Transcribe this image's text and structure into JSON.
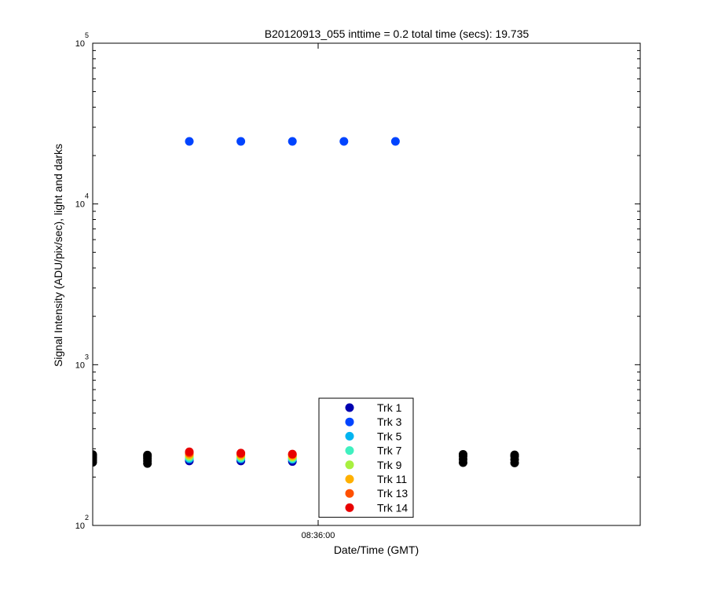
{
  "chart_data": {
    "type": "scatter",
    "title": "B20120913_055 inttime = 0.2 total time (secs): 19.735",
    "xlabel": "Date/Time (GMT)",
    "ylabel": "Signal Intensity (ADU/pix/sec), light and darks",
    "yscale": "log",
    "ylim": [
      100,
      100000
    ],
    "xlim": [
      "08:35:53",
      "08:36:10"
    ],
    "x_ticks": [
      {
        "value": "08:36:00",
        "label": "08:36:00"
      }
    ],
    "y_ticks": [
      {
        "base": "10",
        "exp": "2",
        "value": 100
      },
      {
        "base": "10",
        "exp": "3",
        "value": 1000
      },
      {
        "base": "10",
        "exp": "4",
        "value": 10000
      },
      {
        "base": "10",
        "exp": "5",
        "value": 100000
      }
    ],
    "grid": false,
    "legend_position": "bottom-center",
    "series": [
      {
        "name": "Trk 1",
        "color": "#0000b0",
        "x": [
          "08:35:56",
          "08:35:57.6",
          "08:35:59.2"
        ],
        "y": [
          252,
          252,
          250
        ]
      },
      {
        "name": "Trk 3",
        "color": "#0044ff",
        "x": [
          "08:35:56",
          "08:35:57.6",
          "08:35:59.2",
          "08:36:00.8",
          "08:36:02.4"
        ],
        "y": [
          24500,
          24500,
          24500,
          24500,
          24500
        ]
      },
      {
        "name": "Trk 5",
        "color": "#00b4f0",
        "x": [
          "08:35:56",
          "08:35:57.6",
          "08:35:59.2"
        ],
        "y": [
          260,
          260,
          258
        ]
      },
      {
        "name": "Trk 7",
        "color": "#40f0c0",
        "x": [
          "08:35:56",
          "08:35:57.6",
          "08:35:59.2"
        ],
        "y": [
          265,
          264,
          262
        ]
      },
      {
        "name": "Trk 9",
        "color": "#a8f040",
        "x": [
          "08:35:56",
          "08:35:57.6",
          "08:35:59.2"
        ],
        "y": [
          270,
          269,
          266
        ]
      },
      {
        "name": "Trk 11",
        "color": "#ffb000",
        "x": [
          "08:35:56",
          "08:35:57.6",
          "08:35:59.2"
        ],
        "y": [
          276,
          274,
          271
        ]
      },
      {
        "name": "Trk 13",
        "color": "#ff5000",
        "x": [
          "08:35:56",
          "08:35:57.6",
          "08:35:59.2"
        ],
        "y": [
          282,
          279,
          276
        ]
      },
      {
        "name": "Trk 14",
        "color": "#e80000",
        "x": [
          "08:35:56",
          "08:35:57.6",
          "08:35:59.2"
        ],
        "y": [
          287,
          282,
          278
        ]
      }
    ],
    "dark_points": {
      "color": "#000000",
      "x": [
        "08:35:53",
        "08:35:53",
        "08:35:53",
        "08:35:53",
        "08:35:53",
        "08:35:54.7",
        "08:35:54.7",
        "08:35:54.7",
        "08:35:54.7",
        "08:35:54.7",
        "08:36:04.5",
        "08:36:04.5",
        "08:36:04.5",
        "08:36:04.5",
        "08:36:06.1",
        "08:36:06.1",
        "08:36:06.1",
        "08:36:06.1"
      ],
      "y": [
        276,
        270,
        263,
        255,
        247,
        274,
        268,
        261,
        252,
        243,
        277,
        270,
        258,
        246,
        275,
        269,
        257,
        245
      ]
    }
  }
}
